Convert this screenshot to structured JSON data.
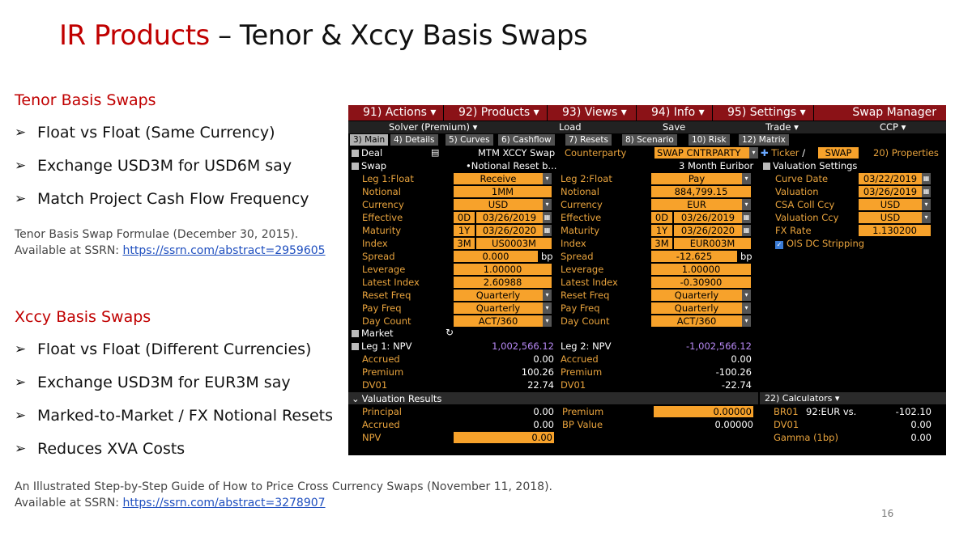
{
  "title": {
    "red": "IR Products",
    "rest": " – Tenor & Xccy Basis Swaps"
  },
  "tenor": {
    "heading": "Tenor Basis Swaps",
    "bullets": [
      "Float vs Float (Same Currency)",
      "Exchange USD3M for USD6M say",
      "Match Project Cash Flow Frequency"
    ],
    "note1": "Tenor Basis Swap Formulae (December 30, 2015).",
    "note2": "Available at SSRN: ",
    "link": "https://ssrn.com/abstract=2959605"
  },
  "xccy": {
    "heading": "Xccy Basis Swaps",
    "bullets": [
      "Float vs Float (Different Currencies)",
      "Exchange USD3M for EUR3M say",
      "Marked-to-Market / FX Notional Resets",
      "Reduces XVA Costs"
    ]
  },
  "footer": {
    "note1": "An Illustrated Step-by-Step Guide of How to Price Cross Currency Swaps (November 11, 2018).",
    "note2": "Available at SSRN: ",
    "link": "https://ssrn.com/abstract=3278907"
  },
  "page_number": "16",
  "bb": {
    "menu": [
      "91) Actions ▾",
      "92) Products ▾",
      "93) Views ▾",
      "94) Info ▾",
      "95) Settings ▾"
    ],
    "swap_manager": "Swap Manager",
    "sub": {
      "solver": "Solver (Premium) ▾",
      "load": "Load",
      "save": "Save",
      "trade": "Trade ▾",
      "ccp": "CCP ▾"
    },
    "tabs": [
      "3) Main",
      "4) Details",
      "5) Curves",
      "6) Cashflow",
      "7) Resets",
      "8) Scenario",
      "10) Risk",
      "12) Matrix"
    ],
    "deal": "Deal",
    "deal_type": "MTM XCCY Swap",
    "counterparty_lbl": "Counterparty",
    "counterparty": "SWAP CNTRPARTY",
    "ticker": "Ticker",
    "slash": "/",
    "ticker_val": "SWAP",
    "properties": "20) Properties",
    "swap": "Swap",
    "notional_reset": "•Notional Reset b...",
    "euribor": "3 Month Euribor",
    "val_settings": "Valuation Settings",
    "leg1_labels": [
      "Leg 1:Float",
      "Notional",
      "Currency",
      "Effective",
      "Maturity",
      "Index",
      "Spread",
      "Leverage",
      "Latest Index",
      "Reset Freq",
      "Pay Freq",
      "Day Count"
    ],
    "leg2_labels": [
      "Leg 2:Float",
      "Notional",
      "Currency",
      "Effective",
      "Maturity",
      "Index",
      "Spread",
      "Leverage",
      "Latest Index",
      "Reset Freq",
      "Pay Freq",
      "Day Count"
    ],
    "leg1": {
      "dir": "Receive",
      "notional": "1MM",
      "ccy": "USD",
      "eff_a": "0D",
      "eff": "03/26/2019",
      "mat_a": "1Y",
      "mat": "03/26/2020",
      "idx_a": "3M",
      "idx": "US0003M",
      "spread": "0.000",
      "bp": "bp",
      "lev": "1.00000",
      "latest": "2.60988",
      "reset": "Quarterly",
      "pay": "Quarterly",
      "dc": "ACT/360"
    },
    "leg2": {
      "dir": "Pay",
      "notional": "884,799.15",
      "ccy": "EUR",
      "eff_a": "0D",
      "eff": "03/26/2019",
      "mat_a": "1Y",
      "mat": "03/26/2020",
      "idx_a": "3M",
      "idx": "EUR003M",
      "spread": "-12.625",
      "bp": "bp",
      "lev": "1.00000",
      "latest": "-0.30900",
      "reset": "Quarterly",
      "pay": "Quarterly",
      "dc": "ACT/360"
    },
    "vs": {
      "labels": [
        "Curve Date",
        "Valuation",
        "CSA Coll Ccy",
        "Valuation Ccy",
        "FX Rate"
      ],
      "values": [
        "03/22/2019",
        "03/26/2019",
        "USD",
        "USD",
        "1.130200"
      ],
      "ois": "OIS DC Stripping"
    },
    "market": "Market",
    "npv": {
      "leg1_lbl": "Leg 1: NPV",
      "leg1_val": "1,002,566.12",
      "leg2_lbl": "Leg 2: NPV",
      "leg2_val": "-1,002,566.12",
      "rows": [
        {
          "l1": "Accrued",
          "v1": "0.00",
          "l2": "Accrued",
          "v2": "0.00"
        },
        {
          "l1": "Premium",
          "v1": "100.26",
          "l2": "Premium",
          "v2": "-100.26"
        },
        {
          "l1": "DV01",
          "v1": "22.74",
          "l2": "DV01",
          "v2": "-22.74"
        }
      ]
    },
    "vr": {
      "title": "Valuation Results",
      "calc": "22) Calculators ▾",
      "principal_lbl": "Principal",
      "principal": "0.00",
      "premium_lbl": "Premium",
      "premium": "0.00000",
      "br01": "BR01",
      "br01_vs": "92:EUR vs.",
      "br01_val": "-102.10",
      "accrued_lbl": "Accrued",
      "accrued": "0.00",
      "bpv_lbl": "BP Value",
      "bpv": "0.00000",
      "dv01_lbl": "DV01",
      "dv01": "0.00",
      "npv_lbl": "NPV",
      "npv": "0.00",
      "gamma_lbl": "Gamma (1bp)",
      "gamma": "0.00"
    }
  }
}
